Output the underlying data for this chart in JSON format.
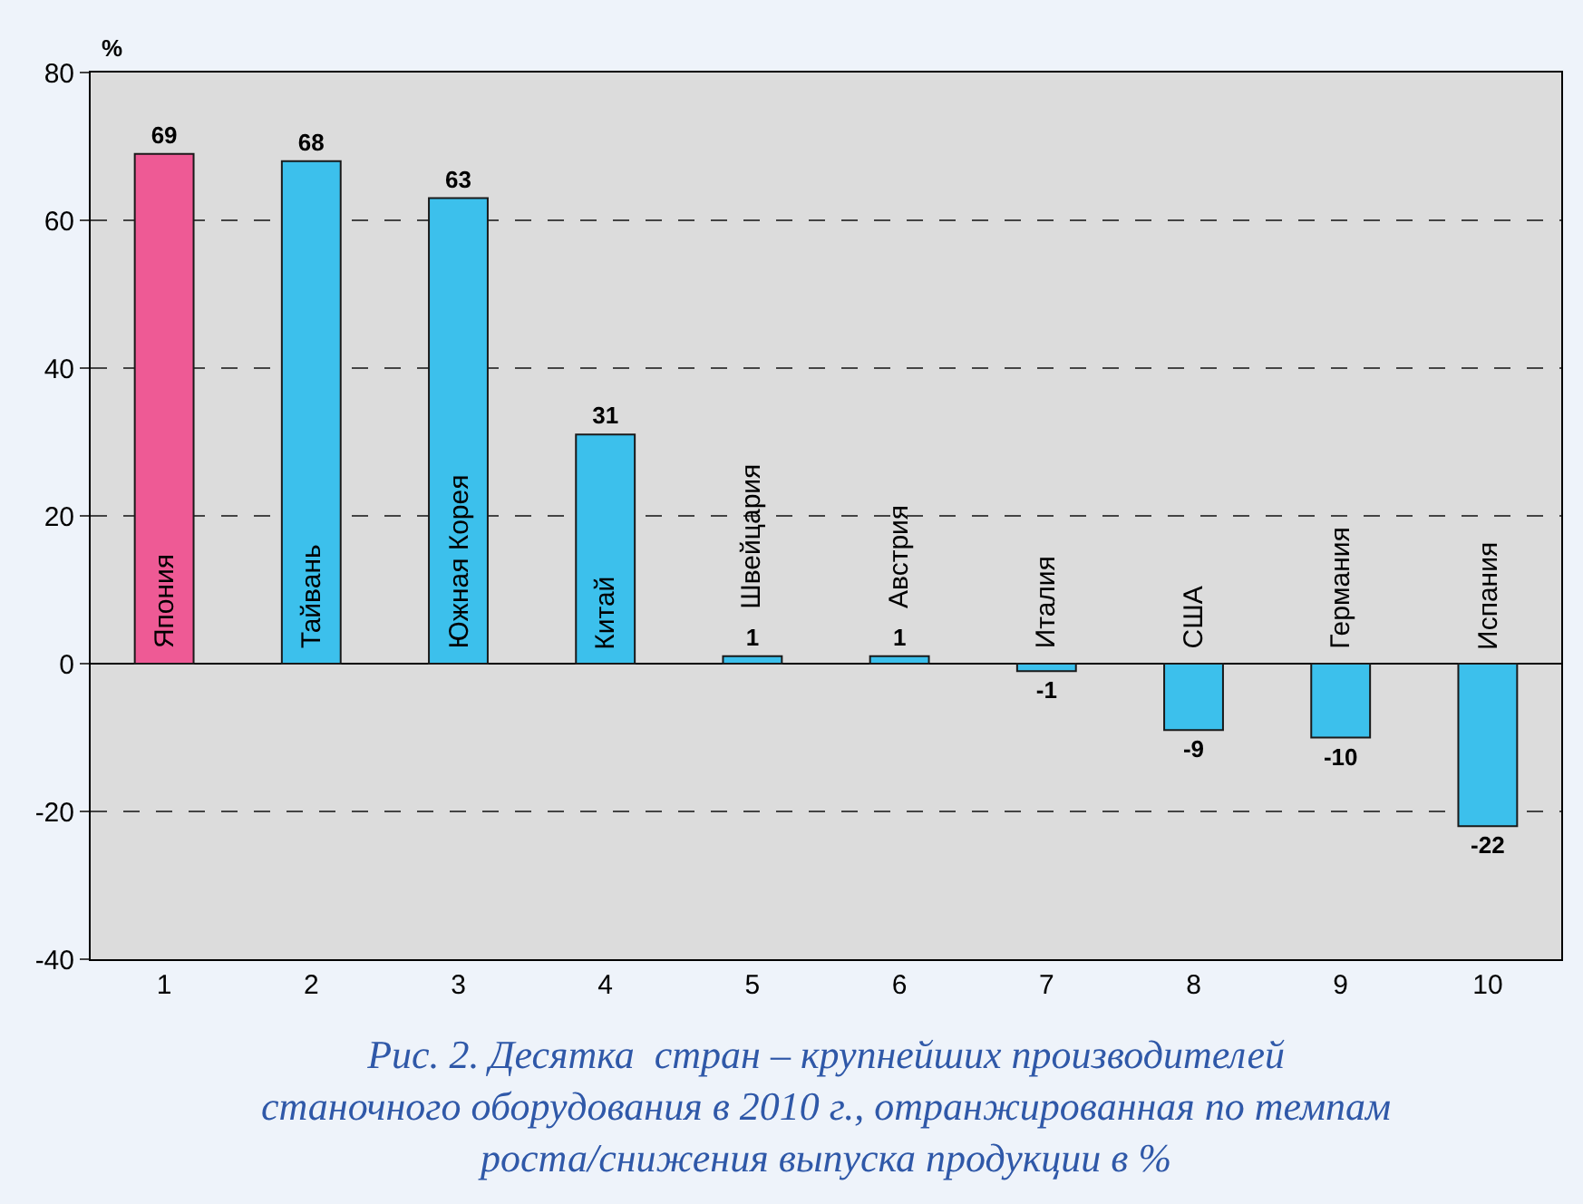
{
  "chart_data": {
    "type": "bar",
    "categories": [
      "1",
      "2",
      "3",
      "4",
      "5",
      "6",
      "7",
      "8",
      "9",
      "10"
    ],
    "values": [
      69,
      68,
      63,
      31,
      1,
      1,
      -1,
      -9,
      -10,
      -22
    ],
    "colors": [
      "#ee5a95",
      "#3cc0ec",
      "#3cc0ec",
      "#3cc0ec",
      "#3cc0ec",
      "#3cc0ec",
      "#3cc0ec",
      "#3cc0ec",
      "#3cc0ec",
      "#3cc0ec"
    ],
    "ylabel": "%",
    "ylim": [
      -40,
      80
    ],
    "yticks": [
      -40,
      -20,
      0,
      20,
      40,
      60,
      80
    ],
    "grid": "y",
    "data_labels": true,
    "annotations": [
      "Япония",
      "Тайвань",
      "Южная Корея",
      "Китай",
      "Швейцария",
      "Австрия",
      "Италия",
      "США",
      "Германия",
      "Испания",
      "Рис. 2. Десятка  стран – крупнейших производителей\nстаночного оборудования в 2010 г., отранжированная по темпам\nроста/снижения выпуска продукции в %"
    ]
  }
}
